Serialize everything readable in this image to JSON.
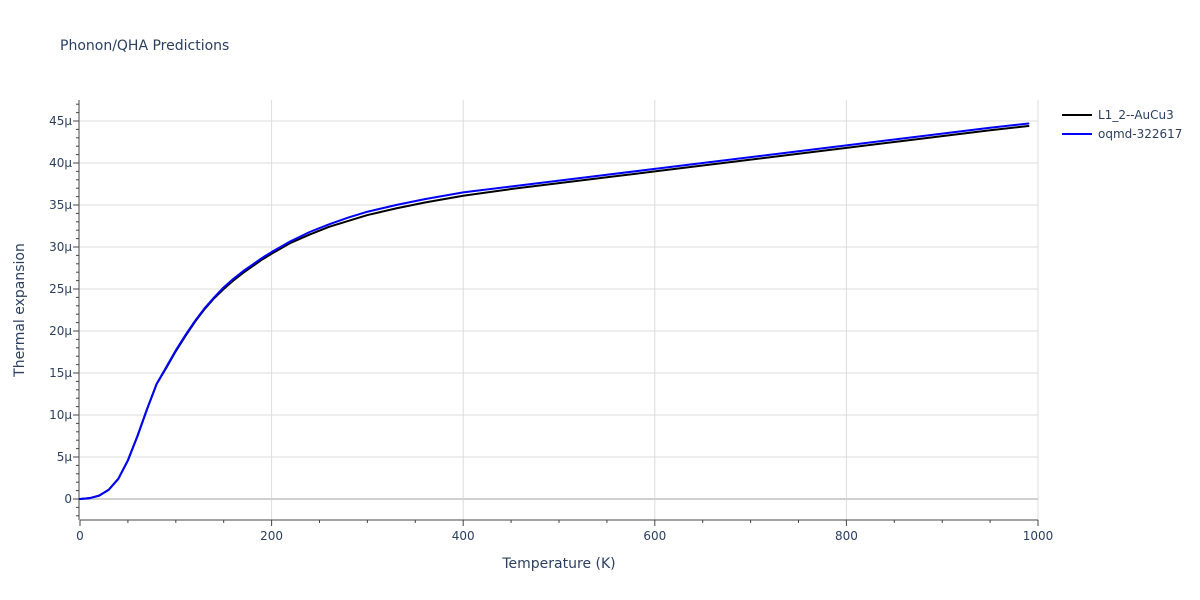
{
  "chart_data": {
    "type": "line",
    "title": "Phonon/QHA Predictions",
    "xlabel": "Temperature (K)",
    "ylabel": "Thermal expansion",
    "xlim": [
      0,
      1000
    ],
    "ylim": [
      -2.5e-06,
      4.75e-05
    ],
    "x_ticks": [
      0,
      200,
      400,
      600,
      800,
      1000
    ],
    "x_tick_labels": [
      "0",
      "200",
      "400",
      "600",
      "800",
      "1000"
    ],
    "y_ticks": [
      0,
      5e-06,
      1e-05,
      1.5e-05,
      2e-05,
      2.5e-05,
      3e-05,
      3.5e-05,
      4e-05,
      4.5e-05
    ],
    "y_tick_labels": [
      "0",
      "5μ",
      "10μ",
      "15μ",
      "20μ",
      "25μ",
      "30μ",
      "35μ",
      "40μ",
      "45μ"
    ],
    "grid": true,
    "legend_position": "top-right",
    "series": [
      {
        "name": "L1_2--AuCu3",
        "color": "#000000",
        "x": [
          0,
          10,
          20,
          30,
          40,
          50,
          60,
          70,
          80,
          90,
          100,
          110,
          120,
          130,
          140,
          150,
          160,
          170,
          180,
          190,
          200,
          220,
          240,
          260,
          280,
          300,
          330,
          360,
          400,
          450,
          500,
          550,
          600,
          650,
          700,
          750,
          800,
          850,
          900,
          950,
          990
        ],
        "y": [
          0,
          1e-07,
          4e-07,
          1.1e-06,
          2.4e-06,
          4.6e-06,
          7.5e-06,
          1.07e-05,
          1.37e-05,
          1.56e-05,
          1.76e-05,
          1.94e-05,
          2.11e-05,
          2.26e-05,
          2.39e-05,
          2.5e-05,
          2.6e-05,
          2.69e-05,
          2.77e-05,
          2.85e-05,
          2.92e-05,
          3.05e-05,
          3.15e-05,
          3.24e-05,
          3.31e-05,
          3.38e-05,
          3.46e-05,
          3.53e-05,
          3.61e-05,
          3.69e-05,
          3.76e-05,
          3.83e-05,
          3.9e-05,
          3.97e-05,
          4.04e-05,
          4.11e-05,
          4.18e-05,
          4.25e-05,
          4.32e-05,
          4.39e-05,
          4.44e-05
        ]
      },
      {
        "name": "oqmd-322617",
        "color": "#0000ff",
        "x": [
          0,
          10,
          20,
          30,
          40,
          50,
          60,
          70,
          80,
          90,
          100,
          110,
          120,
          130,
          140,
          150,
          160,
          170,
          180,
          190,
          200,
          220,
          240,
          260,
          280,
          300,
          330,
          360,
          400,
          450,
          500,
          550,
          600,
          650,
          700,
          750,
          800,
          850,
          900,
          950,
          990
        ],
        "y": [
          0,
          1e-07,
          4e-07,
          1.1e-06,
          2.4e-06,
          4.6e-06,
          7.5e-06,
          1.07e-05,
          1.37e-05,
          1.57e-05,
          1.77e-05,
          1.95e-05,
          2.12e-05,
          2.27e-05,
          2.4e-05,
          2.52e-05,
          2.62e-05,
          2.71e-05,
          2.79e-05,
          2.87e-05,
          2.94e-05,
          3.07e-05,
          3.18e-05,
          3.27e-05,
          3.35e-05,
          3.42e-05,
          3.5e-05,
          3.57e-05,
          3.65e-05,
          3.72e-05,
          3.79e-05,
          3.86e-05,
          3.93e-05,
          4e-05,
          4.07e-05,
          4.14e-05,
          4.21e-05,
          4.28e-05,
          4.35e-05,
          4.42e-05,
          4.47e-05
        ]
      }
    ]
  }
}
